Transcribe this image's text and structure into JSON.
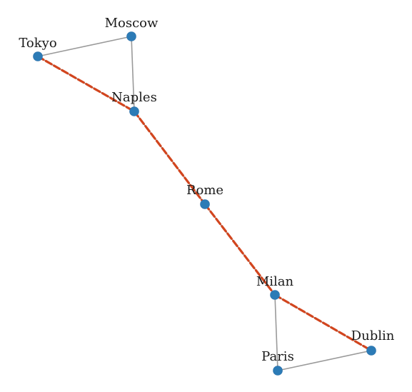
{
  "graph": {
    "nodes": [
      {
        "id": "tokyo",
        "label": "Tokyo"
      },
      {
        "id": "moscow",
        "label": "Moscow"
      },
      {
        "id": "naples",
        "label": "Naples"
      },
      {
        "id": "rome",
        "label": "Rome"
      },
      {
        "id": "milan",
        "label": "Milan"
      },
      {
        "id": "dublin",
        "label": "Dublin"
      },
      {
        "id": "paris",
        "label": "Paris"
      }
    ],
    "edges": [
      {
        "from": "tokyo",
        "to": "moscow",
        "highlighted": false
      },
      {
        "from": "moscow",
        "to": "naples",
        "highlighted": false
      },
      {
        "from": "tokyo",
        "to": "naples",
        "highlighted": true
      },
      {
        "from": "naples",
        "to": "rome",
        "highlighted": true
      },
      {
        "from": "rome",
        "to": "milan",
        "highlighted": true
      },
      {
        "from": "milan",
        "to": "dublin",
        "highlighted": true
      },
      {
        "from": "milan",
        "to": "paris",
        "highlighted": false
      },
      {
        "from": "paris",
        "to": "dublin",
        "highlighted": false
      }
    ],
    "highlighted_path": [
      "Tokyo",
      "Naples",
      "Rome",
      "Milan",
      "Dublin"
    ]
  },
  "colors": {
    "node": "#2c7bb6",
    "edge": "#9a9a9a",
    "path": "#d2451e",
    "background": "#ffffff"
  }
}
